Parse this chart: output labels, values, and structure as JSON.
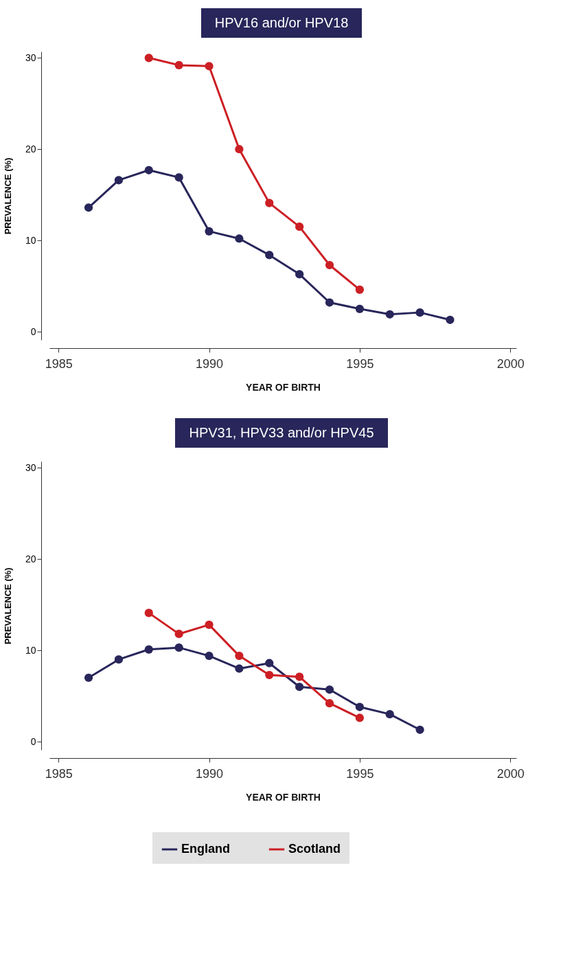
{
  "chart_data": [
    {
      "type": "line",
      "title": "HPV16 and/or HPV18",
      "xlabel": "YEAR OF BIRTH",
      "ylabel": "PREVALENCE (%)",
      "xlim": [
        1984.7,
        2000.2
      ],
      "xticks": [
        1985,
        1990,
        1995,
        2000
      ],
      "ylim": [
        -0.9,
        30.7
      ],
      "yticks": [
        0,
        10,
        20,
        30
      ],
      "grid": false,
      "legend": false,
      "marker": "circle",
      "line_style": "solid",
      "series": [
        {
          "color": "#28265a",
          "x": [
            1986,
            1987,
            1988,
            1989,
            1990,
            1991,
            1992,
            1993,
            1994,
            1995,
            1996,
            1997,
            1998
          ],
          "values": [
            13.6,
            16.6,
            17.7,
            16.9,
            11.0,
            10.2,
            8.4,
            6.3,
            3.2,
            2.5,
            1.9,
            2.1,
            1.3
          ]
        },
        {
          "color": "#cc1f24",
          "x": [
            1988,
            1989,
            1990,
            1991,
            1992,
            1993,
            1994,
            1995
          ],
          "values": [
            30.0,
            29.2,
            29.1,
            20.0,
            14.1,
            11.5,
            7.3,
            4.6
          ]
        }
      ]
    },
    {
      "type": "line",
      "title": "HPV31, HPV33 and/or HPV45",
      "xlabel": "YEAR OF BIRTH",
      "ylabel": "PREVALENCE (%)",
      "xlim": [
        1984.7,
        2000.2
      ],
      "xticks": [
        1985,
        1990,
        1995,
        2000
      ],
      "ylim": [
        -0.9,
        30.7
      ],
      "yticks": [
        0,
        10,
        20,
        30
      ],
      "grid": false,
      "legend": "bottom",
      "marker": "circle",
      "line_style": "solid",
      "series": [
        {
          "name": "England",
          "color": "#28265a",
          "x": [
            1986,
            1987,
            1988,
            1989,
            1990,
            1991,
            1992,
            1993,
            1994,
            1995,
            1996,
            1997
          ],
          "values": [
            7.0,
            9.0,
            10.1,
            10.3,
            9.4,
            8.0,
            8.6,
            6.0,
            5.7,
            3.8,
            3.0,
            1.3
          ]
        },
        {
          "name": "Scotland",
          "color": "#cc1f24",
          "x": [
            1988,
            1989,
            1990,
            1991,
            1992,
            1993,
            1994,
            1995
          ],
          "values": [
            14.1,
            11.8,
            12.8,
            9.4,
            7.3,
            7.1,
            4.2,
            2.6
          ]
        }
      ]
    }
  ]
}
